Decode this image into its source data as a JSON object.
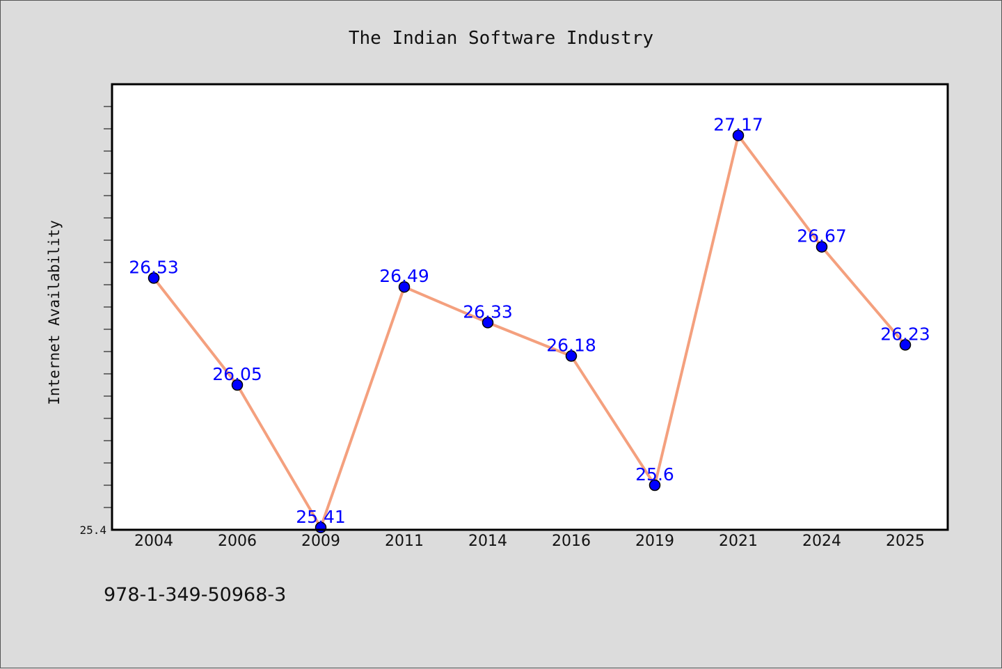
{
  "chart_data": {
    "type": "line",
    "title": "The Indian Software Industry",
    "xlabel": "",
    "ylabel": "Internet Availability",
    "categories": [
      "2004",
      "2006",
      "2009",
      "2011",
      "2014",
      "2016",
      "2019",
      "2021",
      "2024",
      "2025"
    ],
    "series": [
      {
        "values": [
          26.53,
          26.05,
          25.41,
          26.49,
          26.33,
          26.18,
          25.6,
          27.17,
          26.67,
          26.23
        ],
        "line_color": "#f4a07e",
        "marker_color": "#0000ff"
      }
    ],
    "data_labels": [
      "26.53",
      "26.05",
      "25.41",
      "26.49",
      "26.33",
      "26.18",
      "25.6",
      "27.17",
      "26.67",
      "26.23"
    ],
    "ylim": [
      25.4,
      27.4
    ],
    "y_axis_label_shown": "25.4",
    "grid": false,
    "plot_background": "#ffffff",
    "figure_background": "#dcdcdc"
  },
  "footer": {
    "isbn": "978-1-349-50968-3"
  }
}
